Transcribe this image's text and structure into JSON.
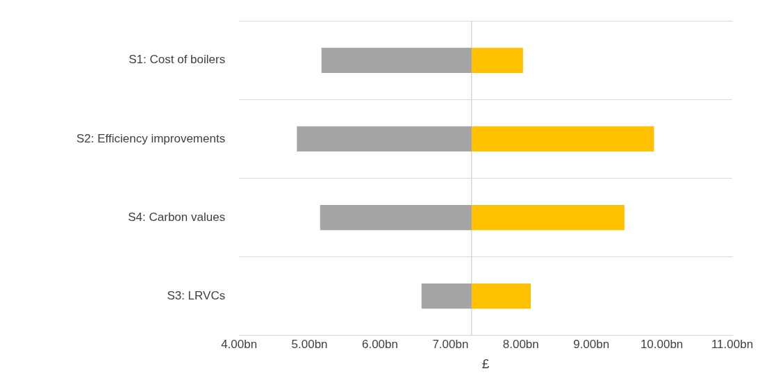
{
  "chart_data": {
    "type": "bar",
    "orientation": "horizontal",
    "xlabel": "£",
    "categories": [
      "S1: Cost of boilers",
      "S2: Efficiency improvements",
      "S4: Carbon values",
      "S3: LRVCs"
    ],
    "series": [
      {
        "color": "#a5a5a5",
        "base": [
          5.17,
          4.82,
          5.15,
          6.59
        ],
        "values": [
          2.13,
          2.48,
          2.15,
          0.71
        ]
      },
      {
        "color": "#ffc000",
        "base": [
          7.3,
          7.3,
          7.3,
          7.3
        ],
        "values": [
          0.73,
          2.59,
          2.17,
          0.84
        ]
      }
    ],
    "xlim": [
      4,
      11
    ],
    "xticks": [
      {
        "value": 4,
        "label": "4.00bn"
      },
      {
        "value": 5,
        "label": "5.00bn"
      },
      {
        "value": 6,
        "label": "6.00bn"
      },
      {
        "value": 7,
        "label": "7.00bn"
      },
      {
        "value": 8,
        "label": "8.00bn"
      },
      {
        "value": 9,
        "label": "9.00bn"
      },
      {
        "value": 10,
        "label": "10.00bn"
      },
      {
        "value": 11,
        "label": "11.00bn"
      }
    ],
    "ref_lines": [
      {
        "axis": "x",
        "value": 7.3,
        "color": "#d9d9d9"
      }
    ],
    "grid": "y",
    "legend": false
  }
}
